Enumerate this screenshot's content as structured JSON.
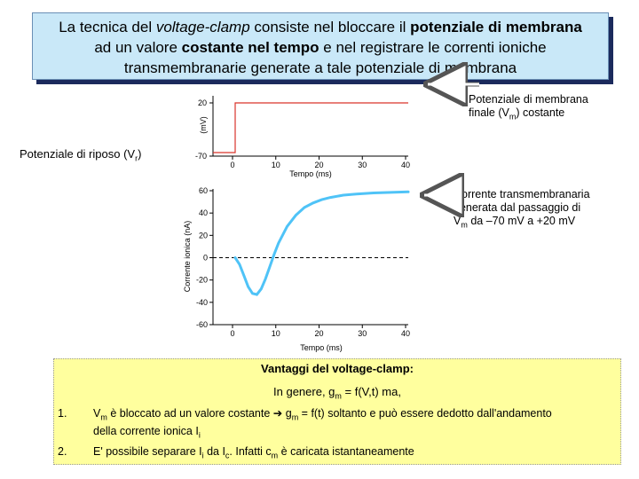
{
  "title": {
    "line1_a": "La tecnica del ",
    "line1_b": "voltage-clamp",
    "line1_c": " consiste nel bloccare il ",
    "line1_d": "potenziale di membrana",
    "line2_a": "ad un valore ",
    "line2_b": "costante nel tempo",
    "line2_c": " e nel registrare le correnti ioniche",
    "line3": "transmembranarie generate a tale potenziale di membrana"
  },
  "voltage_plot": {
    "y_unit": "(mV)",
    "y_ticks": [
      "20",
      "-70"
    ],
    "x_ticks": [
      "0",
      "10",
      "20",
      "30",
      "40"
    ],
    "x_label": "Tempo (ms)",
    "resting_label_a": "Potenziale di riposo (V",
    "resting_label_sub": "r",
    "resting_label_b": ")",
    "final_label_line1": "Potenziale di membrana",
    "final_label_line2_a": "finale (V",
    "final_label_line2_sub": "m",
    "final_label_line2_b": ") costante"
  },
  "current_plot": {
    "y_label": "Corrente ionica (nA)",
    "y_ticks": [
      "60",
      "40",
      "20",
      "0",
      "-20",
      "-40",
      "-60"
    ],
    "x_ticks": [
      "0",
      "10",
      "20",
      "30",
      "40"
    ],
    "x_label": "Tempo (ms)",
    "note_line1": "Corrente transmembranaria",
    "note_line2": "generata dal passaggio di",
    "note_line3_a": "V",
    "note_line3_sub": "m",
    "note_line3_b": " da –70 mV a +20 mV"
  },
  "chart_data": [
    {
      "type": "line",
      "x": [
        0,
        0,
        40
      ],
      "y": [
        -70,
        20,
        20
      ],
      "xlim": [
        0,
        40
      ],
      "ylim": [
        -70,
        20
      ],
      "color": "#d9342b"
    },
    {
      "type": "line",
      "x": [
        0,
        1,
        2,
        3,
        4,
        5,
        6,
        7,
        8,
        9,
        10,
        12,
        14,
        16,
        18,
        20,
        22,
        25,
        28,
        32,
        36,
        40
      ],
      "y": [
        0,
        -6,
        -16,
        -26,
        -32,
        -33,
        -28,
        -19,
        -8,
        3,
        13,
        28,
        38,
        45,
        49,
        52,
        54,
        56,
        57,
        58,
        58.5,
        59
      ],
      "xlim": [
        0,
        40
      ],
      "ylim": [
        -60,
        60
      ],
      "zero_line": "dashed",
      "color": "#4fc3f7"
    }
  ],
  "advantages": {
    "heading": "Vantaggi del voltage-clamp:",
    "intro_a": "In genere, g",
    "intro_sub": "m",
    "intro_b": " = f(V,t) ma,",
    "items": [
      {
        "num": "1.",
        "a": "V",
        "a_sub": "m",
        "b": " è bloccato ad un valore costante ",
        "arrow": "➔",
        "c": " g",
        "c_sub": "m",
        "d": " = f(t) soltanto e può essere dedotto dall'andamento",
        "line2_a": "della corrente ionica I",
        "line2_sub": "i"
      },
      {
        "num": "2.",
        "a": "E' possibile separare I",
        "a_sub": "i",
        "b": " da I",
        "b_sub": "c",
        "c": ". Infatti c",
        "c_sub": "m",
        "d": " è caricata istantaneamente"
      }
    ]
  }
}
